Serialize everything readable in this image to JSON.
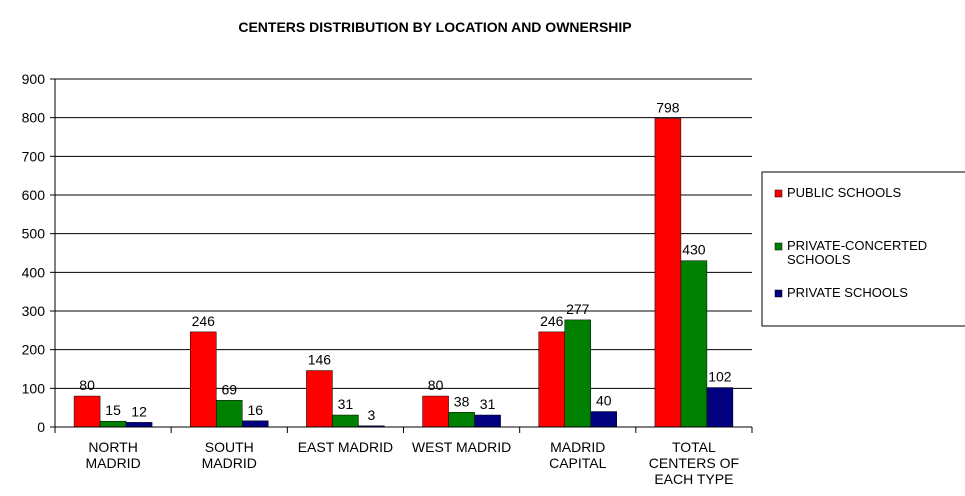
{
  "chart_data": {
    "type": "bar",
    "title": "CENTERS DISTRIBUTION BY LOCATION AND OWNERSHIP",
    "categories": [
      "NORTH MADRID",
      "SOUTH MADRID",
      "EAST MADRID",
      "WEST MADRID",
      "MADRID CAPITAL",
      "TOTAL CENTERS OF EACH TYPE"
    ],
    "series": [
      {
        "name": "PUBLIC SCHOOLS",
        "color": "#ff0000",
        "values": [
          80,
          246,
          146,
          80,
          246,
          798
        ]
      },
      {
        "name": "PRIVATE-CONCERTED SCHOOLS",
        "color": "#008000",
        "values": [
          15,
          69,
          31,
          38,
          277,
          430
        ]
      },
      {
        "name": "PRIVATE SCHOOLS",
        "color": "#000080",
        "values": [
          12,
          16,
          3,
          31,
          40,
          102
        ]
      }
    ],
    "ylim": [
      0,
      900
    ],
    "yticks": [
      0,
      100,
      200,
      300,
      400,
      500,
      600,
      700,
      800,
      900
    ],
    "grid": true,
    "legend": "right"
  }
}
